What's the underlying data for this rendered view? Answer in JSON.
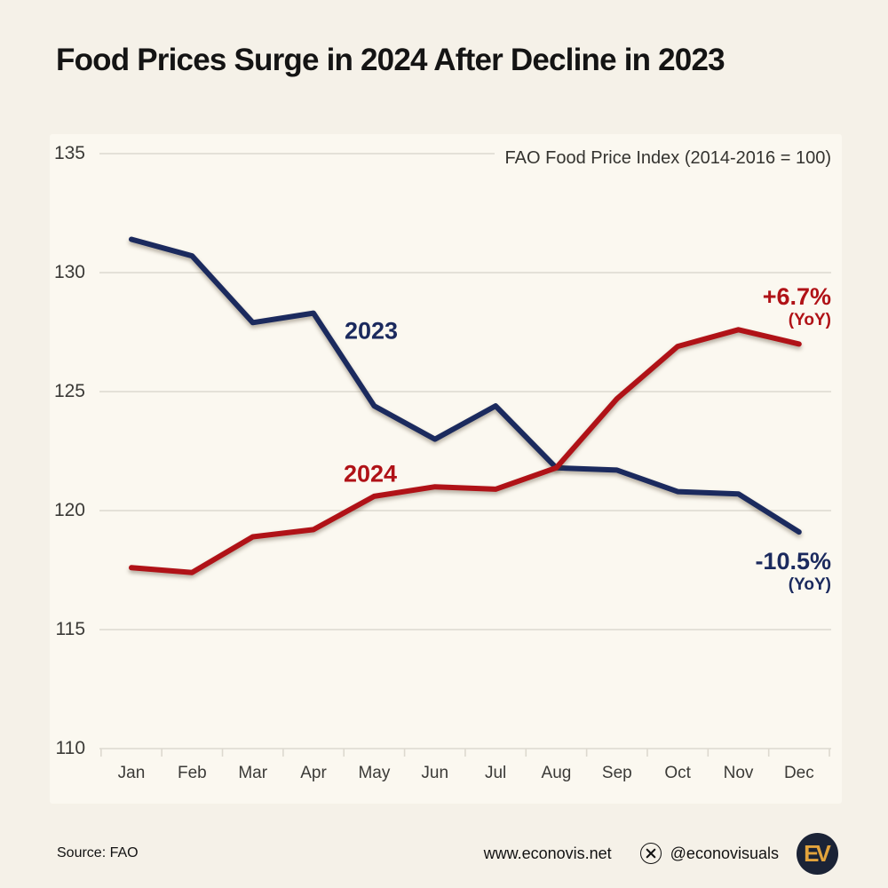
{
  "title": "Food Prices Surge in 2024 After Decline in 2023",
  "chart_data": {
    "type": "line",
    "note": "FAO Food Price Index (2014-2016 = 100)",
    "x": [
      "Jan",
      "Feb",
      "Mar",
      "Apr",
      "May",
      "Jun",
      "Jul",
      "Aug",
      "Sep",
      "Oct",
      "Nov",
      "Dec"
    ],
    "series": [
      {
        "name": "2023",
        "color": "#1b2a5e",
        "values": [
          131.4,
          130.7,
          127.9,
          128.3,
          124.4,
          123.0,
          124.4,
          121.8,
          121.7,
          120.8,
          120.7,
          119.1
        ],
        "yoy_change": "-10.5%",
        "yoy_label": "(YoY)"
      },
      {
        "name": "2024",
        "color": "#b01217",
        "values": [
          117.6,
          117.4,
          118.9,
          119.2,
          120.6,
          121.0,
          120.9,
          121.8,
          124.7,
          126.9,
          127.6,
          127.0
        ],
        "yoy_change": "+6.7%",
        "yoy_label": "(YoY)"
      }
    ],
    "ylim": [
      110,
      135
    ],
    "yticks": [
      110,
      115,
      120,
      125,
      130,
      135
    ],
    "grid": "horizontal",
    "legend": "inline-labels"
  },
  "footer": {
    "source": "Source: FAO",
    "website": "www.econovis.net",
    "x_icon": "x-social-icon",
    "handle": "@econovisuals",
    "logo_text": "EV"
  },
  "colors": {
    "background": "#f5f1e8",
    "plot_card": "#fbf8f0",
    "gridline": "#ddd9cf",
    "axis_text": "#3b3a37",
    "title_text": "#141414",
    "navy": "#1b2a5e",
    "red": "#b01217",
    "logo_bg": "#1b2336",
    "logo_gold": "#e2a33c"
  }
}
